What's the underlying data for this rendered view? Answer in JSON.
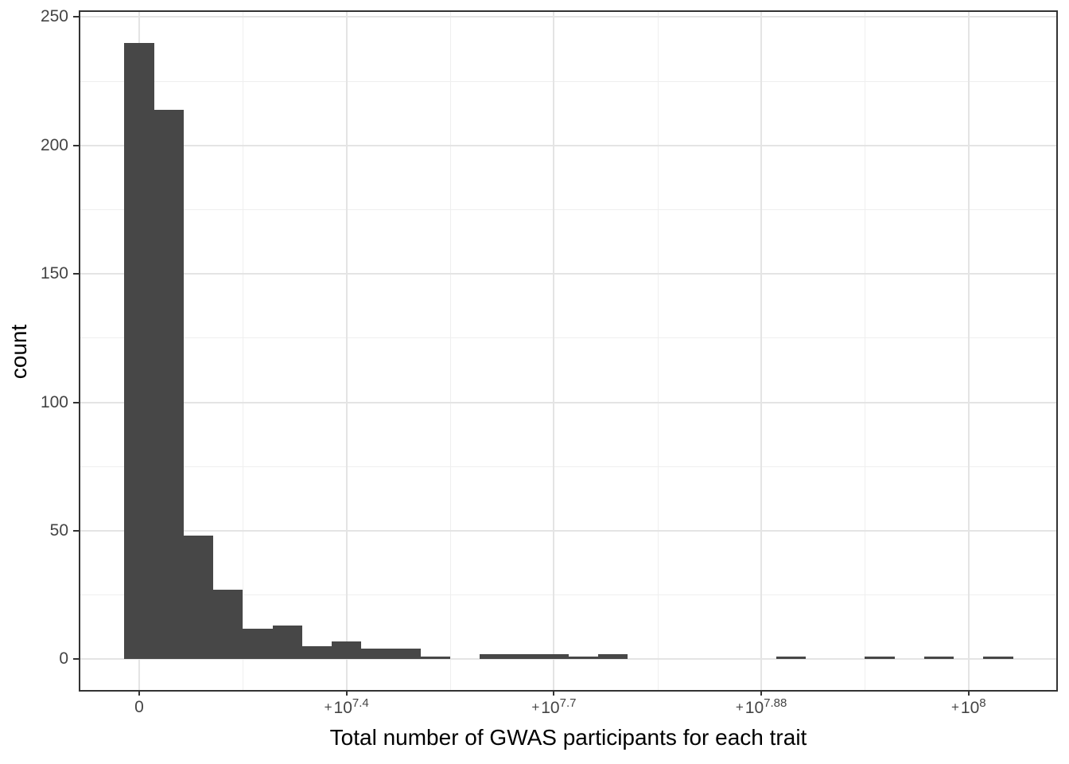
{
  "axes": {
    "x_title": "Total number of GWAS participants for each trait",
    "y_title": "count"
  },
  "chart_data": {
    "type": "bar",
    "subtype": "histogram",
    "title": "",
    "xlabel": "Total number of GWAS participants for each trait",
    "ylabel": "count",
    "legend": "none",
    "grid": true,
    "x_ticks": [
      {
        "plain": "0",
        "value": 0
      },
      {
        "mantissa": "10",
        "exponent": "7.4",
        "signed": "+",
        "value": 25118864
      },
      {
        "mantissa": "10",
        "exponent": "7.7",
        "signed": "+",
        "value": 50118723
      },
      {
        "mantissa": "10",
        "exponent": "7.88",
        "signed": "+",
        "value": 75857758
      },
      {
        "mantissa": "10",
        "exponent": "8",
        "signed": "+",
        "value": 100000000
      }
    ],
    "y_ticks": [
      0,
      50,
      100,
      150,
      200,
      250
    ],
    "y_minor_ticks": [
      25,
      75,
      125,
      175,
      225
    ],
    "ylim": [
      -12,
      252
    ],
    "bins": {
      "note": "bin k is centered at k * (tick spacing / 7) starting at the 0 tick",
      "bin_width_fraction_of_tick_spacing": 0.143,
      "counts": [
        240,
        214,
        48,
        27,
        12,
        13,
        5,
        7,
        4,
        4,
        1,
        0,
        2,
        2,
        2,
        1,
        2,
        0,
        0,
        0,
        0,
        0,
        1,
        0,
        0,
        1,
        0,
        1,
        0,
        1
      ]
    },
    "colors": {
      "bar_fill": "#474747",
      "grid_major": "#e4e4e4",
      "grid_minor": "#efefef",
      "panel_border": "#333333",
      "tick_mark": "#333333",
      "tick_label": "#444444",
      "axis_title": "#000000",
      "background": "#ffffff"
    }
  }
}
